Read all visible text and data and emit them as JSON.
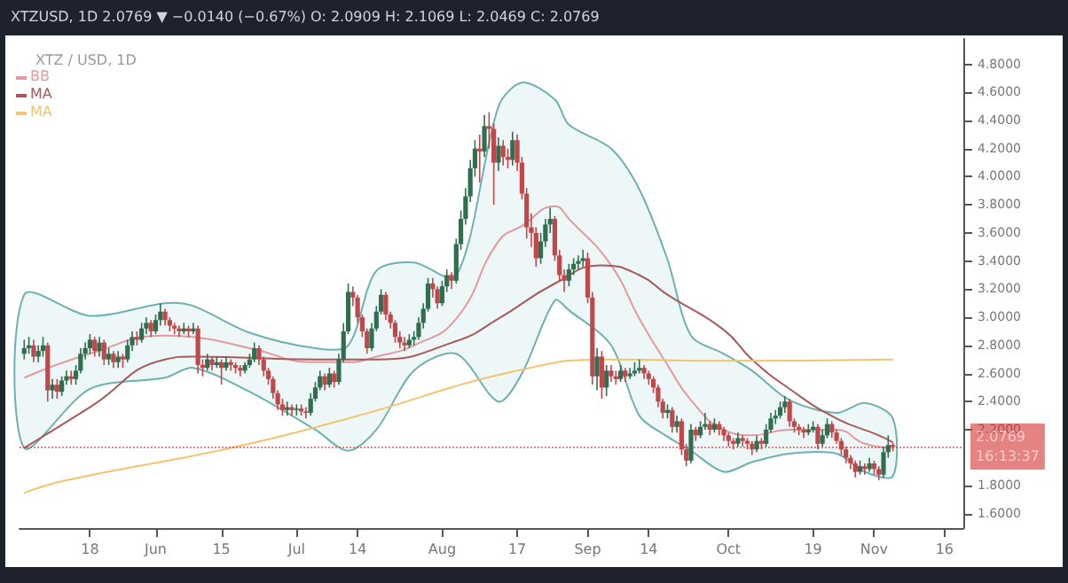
{
  "chart_data": {
    "type": "candlestick",
    "title": "XTZ / USD, 1D",
    "subtitle": "XTZUSD, 1D 2.0769 ▼ −0.0140 (−0.67%) O: 2.0909 H: 2.1069 L: 2.0469 C: 2.0769",
    "x": [
      "--05-04",
      "--05-05",
      "--05-06",
      "--05-07",
      "--05-08",
      "--05-09",
      "--05-10",
      "--05-11",
      "--05-12",
      "--05-13",
      "--05-14",
      "--05-15",
      "--05-16",
      "--05-17",
      "--05-18",
      "--05-19",
      "--05-20",
      "--05-21",
      "--05-22",
      "--05-23",
      "--05-24",
      "--05-25",
      "--05-26",
      "--05-27",
      "--05-28",
      "--05-29",
      "--05-30",
      "--05-31",
      "--06-01",
      "--06-02",
      "--06-03",
      "--06-04",
      "--06-05",
      "--06-06",
      "--06-07",
      "--06-08",
      "--06-09",
      "--06-10",
      "--06-11",
      "--06-12",
      "--06-13",
      "--06-14",
      "--06-15",
      "--06-16",
      "--06-17",
      "--06-18",
      "--06-19",
      "--06-20",
      "--06-21",
      "--06-22",
      "--06-23",
      "--06-24",
      "--06-25",
      "--06-26",
      "--06-27",
      "--06-28",
      "--06-29",
      "--06-30",
      "--07-01",
      "--07-02",
      "--07-03",
      "--07-04",
      "--07-05",
      "--07-06",
      "--07-07",
      "--07-08",
      "--07-09",
      "--07-10",
      "--07-11",
      "--07-12",
      "--07-13",
      "--07-14",
      "--07-15",
      "--07-16",
      "--07-17",
      "--07-18",
      "--07-19",
      "--07-20",
      "--07-21",
      "--07-22",
      "--07-23",
      "--07-24",
      "--07-25",
      "--07-26",
      "--07-27",
      "--07-28",
      "--07-29",
      "--07-30",
      "--07-31",
      "--08-01",
      "--08-02",
      "--08-03",
      "--08-04",
      "--08-05",
      "--08-06",
      "--08-07",
      "--08-08",
      "--08-09",
      "--08-10",
      "--08-11",
      "--08-12",
      "--08-13",
      "--08-14",
      "--08-15",
      "--08-16",
      "--08-17",
      "--08-18",
      "--08-19",
      "--08-20",
      "--08-21",
      "--08-22",
      "--08-23",
      "--08-24",
      "--08-25",
      "--08-26",
      "--08-27",
      "--08-28",
      "--08-29",
      "--08-30",
      "--08-31",
      "--09-01",
      "--09-02",
      "--09-03",
      "--09-04",
      "--09-05",
      "--09-06",
      "--09-07",
      "--09-08",
      "--09-09",
      "--09-10",
      "--09-11",
      "--09-12",
      "--09-13",
      "--09-14",
      "--09-15",
      "--09-16",
      "--09-17",
      "--09-18",
      "--09-19",
      "--09-20",
      "--09-21",
      "--09-22",
      "--09-23",
      "--09-24",
      "--09-25",
      "--09-26",
      "--09-27",
      "--09-28",
      "--09-29",
      "--09-30",
      "--10-01",
      "--10-02",
      "--10-03",
      "--10-04",
      "--10-05",
      "--10-06",
      "--10-07",
      "--10-08",
      "--10-09",
      "--10-10",
      "--10-11",
      "--10-12",
      "--10-13",
      "--10-14",
      "--10-15",
      "--10-16",
      "--10-17",
      "--10-18",
      "--10-19",
      "--10-20",
      "--10-21",
      "--10-22",
      "--10-23",
      "--10-24",
      "--10-25",
      "--10-26",
      "--10-27",
      "--10-28",
      "--10-29",
      "--10-30",
      "--10-31",
      "--11-01",
      "--11-02",
      "--11-03",
      "--11-04",
      "--11-05"
    ],
    "ohlc": [
      [
        2.74,
        2.84,
        2.7,
        2.78
      ],
      [
        2.78,
        2.86,
        2.74,
        2.8
      ],
      [
        2.8,
        2.84,
        2.68,
        2.72
      ],
      [
        2.72,
        2.8,
        2.68,
        2.76
      ],
      [
        2.76,
        2.86,
        2.72,
        2.8
      ],
      [
        2.8,
        2.82,
        2.4,
        2.48
      ],
      [
        2.48,
        2.56,
        2.42,
        2.52
      ],
      [
        2.52,
        2.56,
        2.42,
        2.47
      ],
      [
        2.47,
        2.58,
        2.44,
        2.55
      ],
      [
        2.55,
        2.62,
        2.52,
        2.58
      ],
      [
        2.58,
        2.62,
        2.52,
        2.56
      ],
      [
        2.56,
        2.66,
        2.52,
        2.62
      ],
      [
        2.62,
        2.78,
        2.6,
        2.74
      ],
      [
        2.74,
        2.82,
        2.7,
        2.78
      ],
      [
        2.78,
        2.88,
        2.74,
        2.84
      ],
      [
        2.84,
        2.86,
        2.72,
        2.76
      ],
      [
        2.76,
        2.86,
        2.72,
        2.82
      ],
      [
        2.82,
        2.84,
        2.66,
        2.7
      ],
      [
        2.7,
        2.78,
        2.66,
        2.74
      ],
      [
        2.74,
        2.76,
        2.64,
        2.68
      ],
      [
        2.68,
        2.76,
        2.64,
        2.72
      ],
      [
        2.72,
        2.74,
        2.64,
        2.7
      ],
      [
        2.7,
        2.84,
        2.68,
        2.8
      ],
      [
        2.8,
        2.9,
        2.76,
        2.86
      ],
      [
        2.86,
        2.9,
        2.8,
        2.84
      ],
      [
        2.84,
        2.96,
        2.82,
        2.92
      ],
      [
        2.92,
        3.0,
        2.88,
        2.96
      ],
      [
        2.96,
        2.98,
        2.86,
        2.9
      ],
      [
        2.9,
        3.02,
        2.88,
        2.98
      ],
      [
        2.98,
        3.1,
        2.94,
        3.04
      ],
      [
        3.04,
        3.06,
        2.94,
        2.98
      ],
      [
        2.98,
        3.0,
        2.9,
        2.94
      ],
      [
        2.94,
        2.96,
        2.88,
        2.92
      ],
      [
        2.92,
        2.94,
        2.86,
        2.9
      ],
      [
        2.9,
        2.96,
        2.88,
        2.92
      ],
      [
        2.92,
        2.94,
        2.86,
        2.9
      ],
      [
        2.9,
        2.96,
        2.88,
        2.92
      ],
      [
        2.92,
        2.94,
        2.6,
        2.66
      ],
      [
        2.66,
        2.7,
        2.58,
        2.64
      ],
      [
        2.64,
        2.74,
        2.62,
        2.7
      ],
      [
        2.7,
        2.72,
        2.62,
        2.66
      ],
      [
        2.66,
        2.72,
        2.64,
        2.68
      ],
      [
        2.68,
        2.7,
        2.52,
        2.64
      ],
      [
        2.64,
        2.72,
        2.62,
        2.68
      ],
      [
        2.68,
        2.7,
        2.62,
        2.66
      ],
      [
        2.66,
        2.68,
        2.6,
        2.64
      ],
      [
        2.64,
        2.66,
        2.58,
        2.62
      ],
      [
        2.62,
        2.68,
        2.6,
        2.66
      ],
      [
        2.66,
        2.74,
        2.64,
        2.7
      ],
      [
        2.7,
        2.82,
        2.68,
        2.78
      ],
      [
        2.78,
        2.8,
        2.66,
        2.7
      ],
      [
        2.7,
        2.72,
        2.58,
        2.62
      ],
      [
        2.62,
        2.64,
        2.52,
        2.56
      ],
      [
        2.56,
        2.58,
        2.42,
        2.46
      ],
      [
        2.46,
        2.48,
        2.34,
        2.38
      ],
      [
        2.38,
        2.42,
        2.3,
        2.34
      ],
      [
        2.34,
        2.4,
        2.3,
        2.36
      ],
      [
        2.36,
        2.38,
        2.3,
        2.34
      ],
      [
        2.34,
        2.38,
        2.3,
        2.35
      ],
      [
        2.35,
        2.38,
        2.3,
        2.33
      ],
      [
        2.33,
        2.36,
        2.28,
        2.32
      ],
      [
        2.32,
        2.46,
        2.3,
        2.42
      ],
      [
        2.42,
        2.54,
        2.4,
        2.5
      ],
      [
        2.5,
        2.62,
        2.48,
        2.58
      ],
      [
        2.58,
        2.6,
        2.48,
        2.52
      ],
      [
        2.52,
        2.64,
        2.5,
        2.6
      ],
      [
        2.6,
        2.62,
        2.5,
        2.54
      ],
      [
        2.54,
        2.74,
        2.52,
        2.7
      ],
      [
        2.7,
        2.96,
        2.68,
        2.9
      ],
      [
        2.9,
        3.24,
        2.88,
        3.18
      ],
      [
        3.18,
        3.22,
        3.08,
        3.14
      ],
      [
        3.14,
        3.16,
        2.96,
        3.0
      ],
      [
        3.0,
        3.02,
        2.86,
        2.9
      ],
      [
        2.9,
        2.92,
        2.74,
        2.78
      ],
      [
        2.78,
        2.96,
        2.76,
        2.92
      ],
      [
        2.92,
        3.08,
        2.9,
        3.04
      ],
      [
        3.04,
        3.2,
        3.02,
        3.16
      ],
      [
        3.16,
        3.18,
        2.98,
        3.02
      ],
      [
        3.02,
        3.04,
        2.92,
        2.96
      ],
      [
        2.96,
        2.98,
        2.82,
        2.86
      ],
      [
        2.86,
        2.9,
        2.78,
        2.82
      ],
      [
        2.82,
        2.86,
        2.76,
        2.8
      ],
      [
        2.8,
        2.88,
        2.78,
        2.84
      ],
      [
        2.84,
        2.9,
        2.8,
        2.86
      ],
      [
        2.86,
        3.0,
        2.84,
        2.96
      ],
      [
        2.96,
        3.1,
        2.92,
        3.06
      ],
      [
        3.06,
        3.28,
        3.04,
        3.24
      ],
      [
        3.24,
        3.28,
        3.14,
        3.2
      ],
      [
        3.2,
        3.22,
        3.06,
        3.1
      ],
      [
        3.1,
        3.26,
        3.08,
        3.22
      ],
      [
        3.22,
        3.34,
        3.18,
        3.3
      ],
      [
        3.3,
        3.32,
        3.2,
        3.26
      ],
      [
        3.26,
        3.56,
        3.24,
        3.52
      ],
      [
        3.52,
        3.76,
        3.48,
        3.7
      ],
      [
        3.7,
        3.92,
        3.66,
        3.86
      ],
      [
        3.86,
        4.12,
        3.82,
        4.06
      ],
      [
        4.06,
        4.26,
        4.0,
        4.2
      ],
      [
        4.2,
        4.3,
        3.96,
        4.18
      ],
      [
        4.18,
        4.44,
        4.14,
        4.36
      ],
      [
        4.36,
        4.46,
        4.2,
        4.34
      ],
      [
        4.34,
        4.38,
        3.8,
        4.1
      ],
      [
        4.1,
        4.28,
        4.04,
        4.22
      ],
      [
        4.22,
        4.26,
        4.08,
        4.14
      ],
      [
        4.14,
        4.2,
        4.06,
        4.12
      ],
      [
        4.12,
        4.32,
        4.08,
        4.26
      ],
      [
        4.26,
        4.3,
        4.04,
        4.1
      ],
      [
        4.1,
        4.14,
        3.84,
        3.88
      ],
      [
        3.88,
        3.92,
        3.56,
        3.64
      ],
      [
        3.64,
        3.74,
        3.5,
        3.6
      ],
      [
        3.6,
        3.64,
        3.36,
        3.42
      ],
      [
        3.42,
        3.6,
        3.38,
        3.54
      ],
      [
        3.54,
        3.7,
        3.5,
        3.66
      ],
      [
        3.66,
        3.78,
        3.6,
        3.7
      ],
      [
        3.7,
        3.72,
        3.4,
        3.44
      ],
      [
        3.44,
        3.48,
        3.26,
        3.3
      ],
      [
        3.3,
        3.34,
        3.18,
        3.26
      ],
      [
        3.26,
        3.38,
        3.22,
        3.34
      ],
      [
        3.34,
        3.42,
        3.3,
        3.38
      ],
      [
        3.38,
        3.44,
        3.34,
        3.4
      ],
      [
        3.4,
        3.48,
        3.36,
        3.42
      ],
      [
        3.42,
        3.46,
        3.1,
        3.14
      ],
      [
        3.14,
        3.18,
        2.52,
        2.58
      ],
      [
        2.58,
        2.78,
        2.48,
        2.72
      ],
      [
        2.72,
        2.76,
        2.42,
        2.5
      ],
      [
        2.5,
        2.66,
        2.44,
        2.62
      ],
      [
        2.62,
        2.66,
        2.54,
        2.58
      ],
      [
        2.58,
        2.62,
        2.52,
        2.56
      ],
      [
        2.56,
        2.66,
        2.54,
        2.62
      ],
      [
        2.62,
        2.64,
        2.54,
        2.58
      ],
      [
        2.58,
        2.64,
        2.56,
        2.6
      ],
      [
        2.6,
        2.68,
        2.58,
        2.62
      ],
      [
        2.62,
        2.7,
        2.6,
        2.64
      ],
      [
        2.64,
        2.66,
        2.56,
        2.6
      ],
      [
        2.6,
        2.62,
        2.52,
        2.56
      ],
      [
        2.56,
        2.58,
        2.46,
        2.5
      ],
      [
        2.5,
        2.52,
        2.36,
        2.4
      ],
      [
        2.4,
        2.42,
        2.28,
        2.32
      ],
      [
        2.32,
        2.38,
        2.28,
        2.34
      ],
      [
        2.34,
        2.36,
        2.18,
        2.22
      ],
      [
        2.22,
        2.3,
        2.18,
        2.26
      ],
      [
        2.26,
        2.28,
        2.02,
        2.06
      ],
      [
        2.06,
        2.1,
        1.94,
        1.98
      ],
      [
        1.98,
        2.24,
        1.96,
        2.2
      ],
      [
        2.2,
        2.22,
        2.12,
        2.16
      ],
      [
        2.16,
        2.26,
        2.14,
        2.22
      ],
      [
        2.22,
        2.32,
        2.2,
        2.24
      ],
      [
        2.24,
        2.26,
        2.16,
        2.2
      ],
      [
        2.2,
        2.28,
        2.18,
        2.24
      ],
      [
        2.24,
        2.26,
        2.16,
        2.2
      ],
      [
        2.2,
        2.22,
        2.12,
        2.16
      ],
      [
        2.16,
        2.18,
        2.08,
        2.12
      ],
      [
        2.12,
        2.14,
        2.06,
        2.1
      ],
      [
        2.1,
        2.18,
        2.08,
        2.14
      ],
      [
        2.14,
        2.16,
        2.08,
        2.12
      ],
      [
        2.12,
        2.14,
        2.06,
        2.1
      ],
      [
        2.1,
        2.12,
        2.02,
        2.06
      ],
      [
        2.06,
        2.16,
        2.04,
        2.12
      ],
      [
        2.12,
        2.14,
        2.06,
        2.1
      ],
      [
        2.1,
        2.24,
        2.08,
        2.2
      ],
      [
        2.2,
        2.32,
        2.18,
        2.28
      ],
      [
        2.28,
        2.34,
        2.24,
        2.3
      ],
      [
        2.3,
        2.4,
        2.28,
        2.36
      ],
      [
        2.36,
        2.44,
        2.32,
        2.4
      ],
      [
        2.4,
        2.42,
        2.22,
        2.26
      ],
      [
        2.26,
        2.28,
        2.18,
        2.22
      ],
      [
        2.22,
        2.24,
        2.16,
        2.2
      ],
      [
        2.2,
        2.22,
        2.14,
        2.18
      ],
      [
        2.18,
        2.24,
        2.16,
        2.2
      ],
      [
        2.2,
        2.26,
        2.18,
        2.22
      ],
      [
        2.22,
        2.24,
        2.06,
        2.1
      ],
      [
        2.1,
        2.2,
        2.08,
        2.16
      ],
      [
        2.16,
        2.28,
        2.14,
        2.24
      ],
      [
        2.24,
        2.26,
        2.14,
        2.18
      ],
      [
        2.18,
        2.2,
        2.1,
        2.12
      ],
      [
        2.12,
        2.14,
        2.02,
        2.06
      ],
      [
        2.06,
        2.08,
        1.96,
        2.0
      ],
      [
        2.0,
        2.02,
        1.92,
        1.96
      ],
      [
        1.96,
        1.98,
        1.86,
        1.9
      ],
      [
        1.9,
        1.98,
        1.88,
        1.94
      ],
      [
        1.94,
        1.96,
        1.88,
        1.92
      ],
      [
        1.92,
        2.0,
        1.9,
        1.96
      ],
      [
        1.96,
        1.98,
        1.88,
        1.92
      ],
      [
        1.92,
        1.94,
        1.84,
        1.88
      ],
      [
        1.88,
        2.08,
        1.86,
        2.04
      ],
      [
        2.04,
        2.16,
        2.0,
        2.0909
      ],
      [
        2.0909,
        2.1069,
        2.0469,
        2.0769
      ]
    ],
    "series": [
      {
        "type": "line",
        "name": "BB",
        "color": "#e39a9e",
        "x": [
          "--05-04",
          "--05-18",
          "--06-03",
          "--06-09",
          "--06-21",
          "--07-05",
          "--07-12",
          "--07-18",
          "--07-26",
          "--08-04",
          "--08-13",
          "--08-18",
          "--08-25",
          "--08-28",
          "--09-06",
          "--09-12",
          "--09-18",
          "--09-23",
          "--09-30",
          "--10-06",
          "--10-14",
          "--10-24",
          "--10-30",
          "--11-05"
        ],
        "values": [
          2.57,
          2.74,
          2.87,
          2.86,
          2.78,
          2.68,
          2.68,
          2.72,
          2.8,
          2.99,
          3.54,
          3.65,
          3.79,
          3.7,
          3.37,
          2.99,
          2.66,
          2.41,
          2.2,
          2.16,
          2.2,
          2.2,
          2.1,
          2.07
        ],
        "upper": [
          3.16,
          3.01,
          3.1,
          3.08,
          2.89,
          2.78,
          2.8,
          3.33,
          3.39,
          3.29,
          4.5,
          4.67,
          4.55,
          4.37,
          4.2,
          3.91,
          3.41,
          2.87,
          2.74,
          2.62,
          2.41,
          2.32,
          2.39,
          2.28
        ],
        "lower": [
          2.07,
          2.49,
          2.57,
          2.64,
          2.47,
          2.2,
          2.05,
          2.2,
          2.62,
          2.74,
          2.4,
          2.6,
          3.12,
          3.05,
          2.8,
          2.3,
          2.15,
          2.05,
          1.9,
          1.97,
          2.03,
          2.03,
          1.9,
          1.87
        ]
      },
      {
        "type": "line",
        "name": "MA",
        "color": "#a85a5a",
        "x": [
          "--05-04",
          "--05-18",
          "--06-03",
          "--06-09",
          "--07-05",
          "--07-18",
          "--08-04",
          "--08-13",
          "--08-25",
          "--09-04",
          "--09-12",
          "--09-18",
          "--09-30",
          "--10-06",
          "--10-14",
          "--10-24",
          "--11-02",
          "--11-05"
        ],
        "values": [
          2.07,
          2.36,
          2.7,
          2.72,
          2.7,
          2.7,
          2.83,
          2.99,
          3.24,
          3.37,
          3.3,
          3.16,
          2.91,
          2.7,
          2.49,
          2.28,
          2.16,
          2.11
        ]
      },
      {
        "type": "line",
        "name": "MA",
        "color": "#f2c46d",
        "x": [
          "--05-04",
          "--05-13",
          "--06-17",
          "--07-12",
          "--08-17",
          "--09-06",
          "--09-30",
          "--11-05"
        ],
        "values": [
          1.75,
          1.84,
          2.07,
          2.28,
          2.62,
          2.7,
          2.69,
          2.7
        ]
      }
    ],
    "xlim": [
      "--05-03",
      "--11-20"
    ],
    "xticks": [
      {
        "value": "--05-18",
        "label": "18"
      },
      {
        "value": "--06-01",
        "label": "Jun"
      },
      {
        "value": "--06-15",
        "label": "15"
      },
      {
        "value": "--07-01",
        "label": "Jul"
      },
      {
        "value": "--07-14",
        "label": "14"
      },
      {
        "value": "--08-01",
        "label": "Aug"
      },
      {
        "value": "--08-17",
        "label": "17"
      },
      {
        "value": "--09-01",
        "label": "Sep"
      },
      {
        "value": "--09-14",
        "label": "14"
      },
      {
        "value": "--10-01",
        "label": "Oct"
      },
      {
        "value": "--10-19",
        "label": "19"
      },
      {
        "value": "--11-01",
        "label": "Nov"
      },
      {
        "value": "--11-16",
        "label": "16"
      }
    ],
    "ylim": [
      1.5,
      4.98
    ],
    "yticks": [
      {
        "value": 1.6,
        "label": "1.6000"
      },
      {
        "value": 1.8,
        "label": "1.8000"
      },
      {
        "value": 2.2,
        "label": "2.2000"
      },
      {
        "value": 2.4,
        "label": "2.4000"
      },
      {
        "value": 2.6,
        "label": "2.6000"
      },
      {
        "value": 2.8,
        "label": "2.8000"
      },
      {
        "value": 3.0,
        "label": "3.0000"
      },
      {
        "value": 3.2,
        "label": "3.2000"
      },
      {
        "value": 3.4,
        "label": "3.4000"
      },
      {
        "value": 3.6,
        "label": "3.6000"
      },
      {
        "value": 3.8,
        "label": "3.8000"
      },
      {
        "value": 4.0,
        "label": "4.0000"
      },
      {
        "value": 4.2,
        "label": "4.2000"
      },
      {
        "value": 4.4,
        "label": "4.4000"
      },
      {
        "value": 4.6,
        "label": "4.6000"
      },
      {
        "value": 4.8,
        "label": "4.8000"
      }
    ],
    "ref_lines": [
      {
        "axis": "y",
        "value": 2.0769,
        "label": "2.0769",
        "color": "#d32f2f"
      }
    ],
    "annotations": [
      "16:13:37"
    ],
    "legend": "top left",
    "grid": false
  }
}
